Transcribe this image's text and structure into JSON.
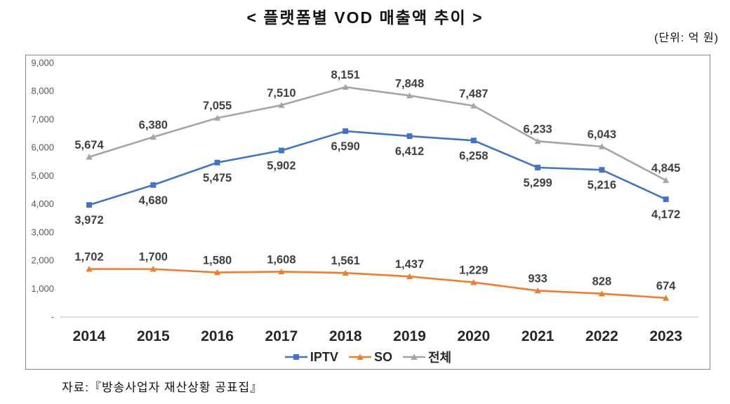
{
  "title": "< 플랫폼별 VOD 매출액 추이 >",
  "unit_label": "(단위: 억 원)",
  "source": "자료:『방송사업자 재산상황 공표집』",
  "chart_data": {
    "type": "line",
    "title": "플랫폼별 VOD 매출액 추이",
    "unit": "억 원",
    "categories": [
      "2014",
      "2015",
      "2016",
      "2017",
      "2018",
      "2019",
      "2020",
      "2021",
      "2022",
      "2023"
    ],
    "series": [
      {
        "name": "IPTV",
        "color": "#4472C4",
        "marker": "square",
        "label_position": "below",
        "values": [
          3972,
          4680,
          5475,
          5902,
          6590,
          6412,
          6258,
          5299,
          5216,
          4172
        ]
      },
      {
        "name": "SO",
        "color": "#ED7D31",
        "marker": "triangle",
        "label_position": "above",
        "values": [
          1702,
          1700,
          1580,
          1608,
          1561,
          1437,
          1229,
          933,
          828,
          674
        ]
      },
      {
        "name": "전체",
        "color": "#A5A5A5",
        "marker": "triangle",
        "label_position": "above",
        "values": [
          5674,
          6380,
          7055,
          7510,
          8151,
          7848,
          7487,
          6233,
          6043,
          4845
        ]
      }
    ],
    "ylim": [
      0,
      9000
    ],
    "ytick_step": 1000,
    "ytick_labels": [
      "-",
      "1,000",
      "2,000",
      "3,000",
      "4,000",
      "5,000",
      "6,000",
      "7,000",
      "8,000",
      "9,000"
    ],
    "grid": false,
    "legend_position": "bottom",
    "colors": {
      "axis_line": "#D9D9D9",
      "ytick_text": "#595959",
      "xtick_text": "#262626",
      "data_label": "#404040",
      "frame_border": "#898989"
    }
  }
}
